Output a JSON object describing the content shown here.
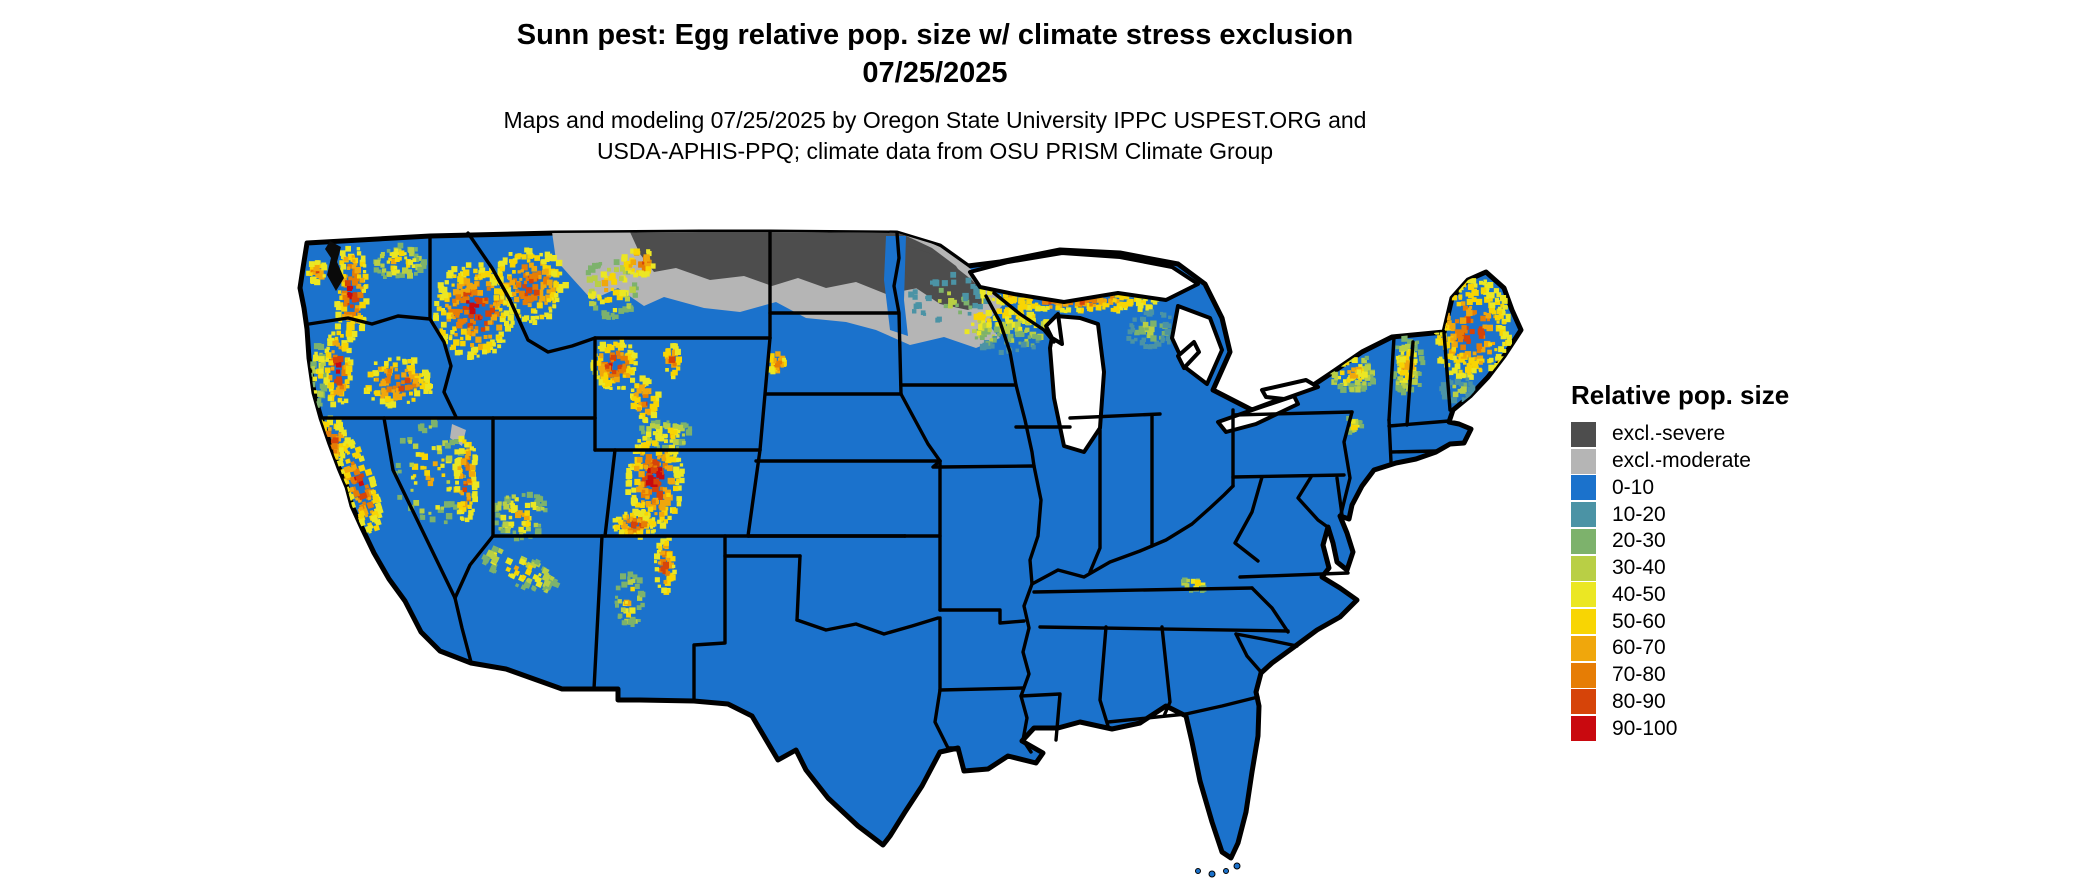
{
  "header": {
    "title_line1": "Sunn pest: Egg relative pop. size w/ climate stress exclusion",
    "title_line2": "07/25/2025",
    "subtitle_line1": "Maps and modeling 07/25/2025 by Oregon State University IPPC USPEST.ORG and",
    "subtitle_line2": "USDA-APHIS-PPQ; climate data from OSU PRISM Climate Group"
  },
  "legend": {
    "title": "Relative pop. size",
    "items": [
      {
        "label": "excl.-severe",
        "color": "#4d4d4d"
      },
      {
        "label": "excl.-moderate",
        "color": "#b5b5b5"
      },
      {
        "label": "0-10",
        "color": "#1b72cc"
      },
      {
        "label": "10-20",
        "color": "#4b93a5"
      },
      {
        "label": "20-30",
        "color": "#7db26c"
      },
      {
        "label": "30-40",
        "color": "#b9cf45"
      },
      {
        "label": "40-50",
        "color": "#ebe723"
      },
      {
        "label": "50-60",
        "color": "#f8d503"
      },
      {
        "label": "60-70",
        "color": "#f0a70c"
      },
      {
        "label": "70-80",
        "color": "#e67d05"
      },
      {
        "label": "80-90",
        "color": "#d64409"
      },
      {
        "label": "90-100",
        "color": "#c9090f"
      }
    ]
  },
  "map_data": {
    "type": "choropleth-raster",
    "extent": "Contiguous United States with state boundaries",
    "units": "Relative population size (percent classes) with climate stress exclusion zones",
    "base_class": "0-10",
    "notable_regions": [
      {
        "region": "Most of central, southern and eastern US",
        "class": "0-10"
      },
      {
        "region": "Northern Montana, North Dakota, northern Minnesota (near Canadian border)",
        "class": "excl.-severe with excl.-moderate fringe"
      },
      {
        "region": "Red River Valley (ND/MN border)",
        "class": "0-10 corridor through exclusion zone"
      },
      {
        "region": "Cascades, Sierra Nevada, Idaho and Montana Rockies, Yellowstone, Wasatch, Colorado Rockies, San Juan, Sangre de Cristo, Mogollon Rim",
        "class": "40-100 (yellow-orange-red mountain terrain)"
      },
      {
        "region": "Upper Peninsula of Michigan and northern Wisconsin",
        "class": "30-80 band"
      },
      {
        "region": "Maine, White Mountains, Adirondacks",
        "class": "30-80"
      },
      {
        "region": "Great Salt Lake vicinity",
        "class": "excl.-moderate patch"
      }
    ]
  }
}
